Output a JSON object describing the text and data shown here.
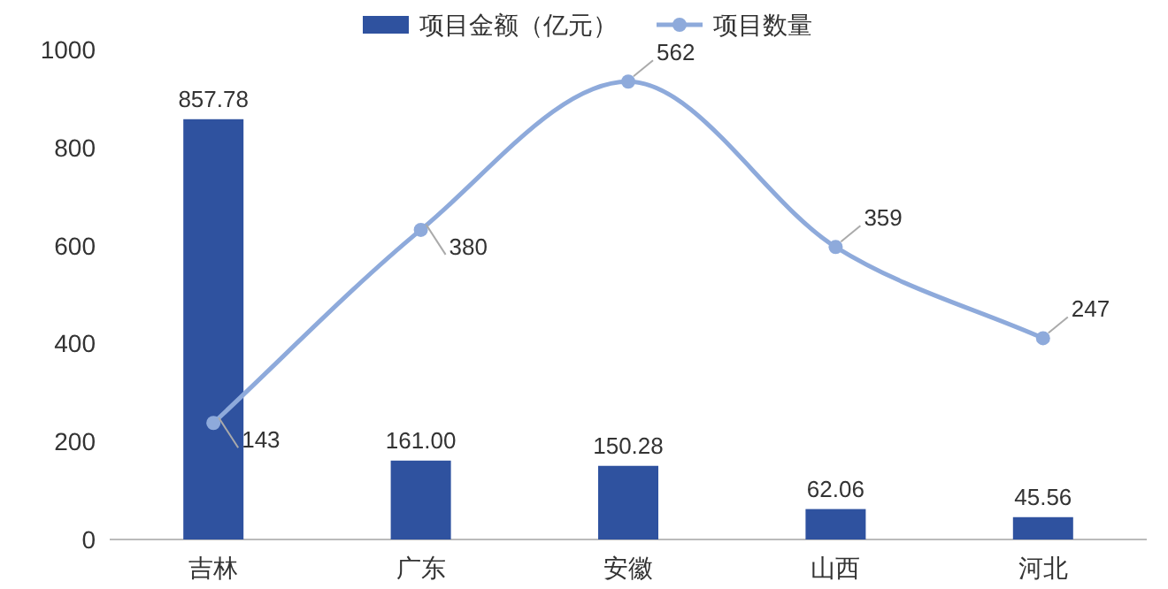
{
  "chart_data": {
    "type": "bar",
    "categories": [
      "吉林",
      "广东",
      "安徽",
      "山西",
      "河北"
    ],
    "series": [
      {
        "name": "项目金额（亿元）",
        "color": "#2f529f",
        "values": [
          857.78,
          161.0,
          150.28,
          62.06,
          45.56
        ],
        "value_labels": [
          "857.78",
          "161.00",
          "150.28",
          "62.06",
          "45.56"
        ]
      },
      {
        "name": "项目数量",
        "type": "line",
        "axis": "y2",
        "color": "#8eaadb",
        "values": [
          143,
          380,
          562,
          359,
          247
        ],
        "value_labels": [
          "143",
          "380",
          "562",
          "359",
          "247"
        ]
      }
    ],
    "ylim": [
      0,
      1000
    ],
    "yticks": [
      0,
      200,
      400,
      600,
      800,
      1000
    ],
    "legend": "top",
    "marker": "circle",
    "line_style": "solid"
  }
}
